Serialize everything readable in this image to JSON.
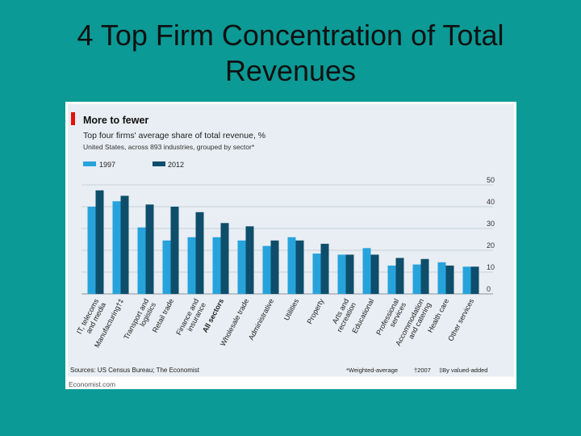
{
  "slide": {
    "title_line1": "4 Top Firm Concentration of Total",
    "title_line2": "Revenues"
  },
  "chart_data": {
    "type": "bar",
    "title": "More to fewer",
    "subtitle": "Top four firms' average share of total revenue, %",
    "subtitle2": "United States, across 893 industries, grouped by sector*",
    "legend_position": "top-left",
    "grid": true,
    "ylim": [
      0,
      50
    ],
    "yticks": [
      0,
      10,
      20,
      30,
      40,
      50
    ],
    "categories": [
      [
        "IT, telecoms",
        "and media"
      ],
      [
        "Manufacturing†‡"
      ],
      [
        "Transport and",
        "logistics"
      ],
      [
        "Retail trade"
      ],
      [
        "Finance and",
        "insurance"
      ],
      [
        "All sectors"
      ],
      [
        "Wholesale trade"
      ],
      [
        "Administrative"
      ],
      [
        "Utilities"
      ],
      [
        "Property"
      ],
      [
        "Arts and",
        "recreation"
      ],
      [
        "Educational"
      ],
      [
        "Professional",
        "services"
      ],
      [
        "Accommodation",
        "and catering"
      ],
      [
        "Health care"
      ],
      [
        "Other services"
      ]
    ],
    "series": [
      {
        "name": "1997",
        "values": [
          40,
          42.5,
          30.5,
          24.5,
          26,
          26,
          24.5,
          22,
          26,
          18.5,
          18,
          21,
          13,
          13.5,
          14.5,
          12.5
        ]
      },
      {
        "name": "2012",
        "values": [
          47.5,
          45,
          41,
          40,
          37.5,
          32.5,
          31,
          24.5,
          24.5,
          23,
          18,
          18,
          16.5,
          16,
          13,
          12.5
        ]
      }
    ],
    "colors": {
      "1997": "#27a3dc",
      "2012": "#0e4e6b",
      "accent": "#e3120b",
      "panel": "#e8eef3",
      "grid": "#c9d3da"
    },
    "sources": "Sources: US Census Bureau; The Economist",
    "notes": [
      "*Weighted-average",
      "†2007",
      "‡By valued-added"
    ],
    "credit": "Economist.com"
  }
}
